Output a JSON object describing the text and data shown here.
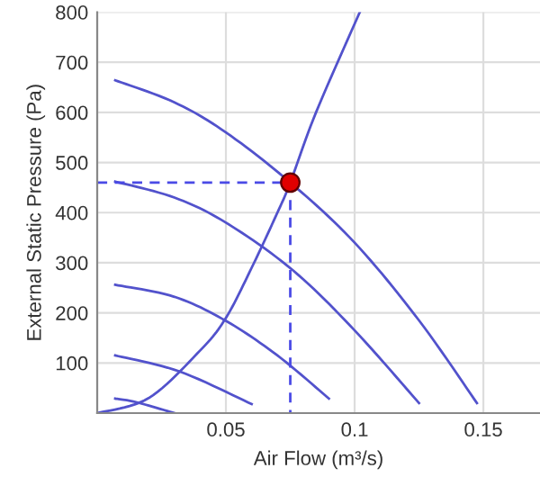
{
  "chart_data": {
    "type": "line",
    "xlabel": "Air Flow (m³/s)",
    "ylabel": "External Static Pressure (Pa)",
    "xlim": [
      0,
      0.172
    ],
    "ylim": [
      0,
      800
    ],
    "xticks": [
      {
        "value": 0,
        "label": null
      },
      0.05,
      0.1,
      0.15
    ],
    "yticks": [
      {
        "value": 0,
        "label": null
      },
      100,
      200,
      300,
      400,
      500,
      600,
      700,
      800
    ],
    "grid": true,
    "legend": false,
    "marker": "none",
    "line_style": "solid",
    "series": [
      {
        "color": "#5252cc",
        "x": [
          0,
          0.02,
          0.04,
          0.05,
          0.06,
          0.07,
          0.075,
          0.085,
          0.102
        ],
        "values": [
          0,
          30,
          125,
          190,
          290,
          400,
          460,
          600,
          800
        ]
      },
      {
        "type": "line",
        "color": "#5252cc",
        "x": [
          0.007,
          0.03,
          0.05,
          0.075,
          0.1,
          0.125,
          0.1475
        ],
        "values": [
          664,
          620,
          560,
          460,
          340,
          185,
          20
        ]
      },
      {
        "type": "line",
        "color": "#5252cc",
        "x": [
          0.007,
          0.03,
          0.05,
          0.076,
          0.1,
          0.125
        ],
        "values": [
          462,
          430,
          380,
          285,
          165,
          20
        ]
      },
      {
        "type": "line",
        "color": "#5252cc",
        "x": [
          0.007,
          0.03,
          0.05,
          0.07,
          0.09
        ],
        "values": [
          256,
          232,
          184,
          115,
          29
        ]
      },
      {
        "type": "line",
        "color": "#5252cc",
        "x": [
          0.007,
          0.032,
          0.06
        ],
        "values": [
          115,
          83,
          18
        ]
      },
      {
        "type": "line",
        "color": "#5252cc",
        "x": [
          0.007,
          0.015,
          0.03
        ],
        "values": [
          29,
          22,
          0
        ]
      },
      {
        "type": "line",
        "color": "#4a4ae6",
        "line_style": "dashed",
        "x": [
          0,
          0.075
        ],
        "values": [
          460,
          460
        ]
      },
      {
        "type": "line",
        "color": "#4a4ae6",
        "line_style": "dashed",
        "x": [
          0.075,
          0.075
        ],
        "values": [
          460,
          0
        ]
      },
      {
        "type": "scatter",
        "color": "#e00000",
        "marker": "circle",
        "x": [
          0.075
        ],
        "values": [
          460
        ]
      }
    ]
  }
}
